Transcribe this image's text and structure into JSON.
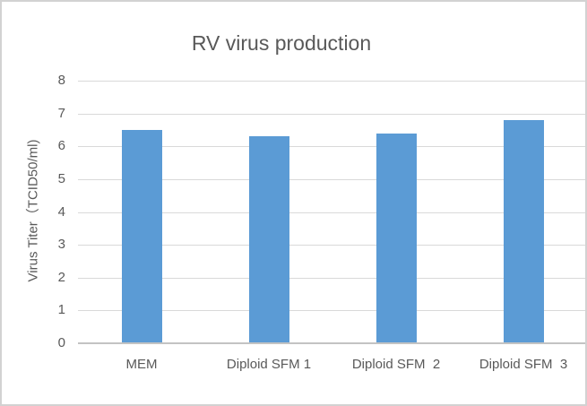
{
  "chart": {
    "title": "RV virus production",
    "y_axis_title": "Virus Titer（TCID50/ml)"
  },
  "chart_data": {
    "type": "bar",
    "categories": [
      "MEM",
      "Diploid SFM 1",
      "Diploid SFM  2",
      "Diploid SFM  3"
    ],
    "values": [
      6.5,
      6.3,
      6.4,
      6.8
    ],
    "title": "RV virus production",
    "xlabel": "",
    "ylabel": "Virus Titer（TCID50/ml)",
    "ylim": [
      0,
      8
    ],
    "ytick_step": 1,
    "ytick_labels": [
      "0",
      "1",
      "2",
      "3",
      "4",
      "5",
      "6",
      "7",
      "8"
    ],
    "grid": true,
    "legend": false,
    "bar_color": "#5b9bd5",
    "gridline_color": "#d9d9d9",
    "axis_line_color": "#c3c3c3",
    "text_color": "#595959",
    "background_color": "#ffffff",
    "border_color": "#d2d2d2"
  }
}
